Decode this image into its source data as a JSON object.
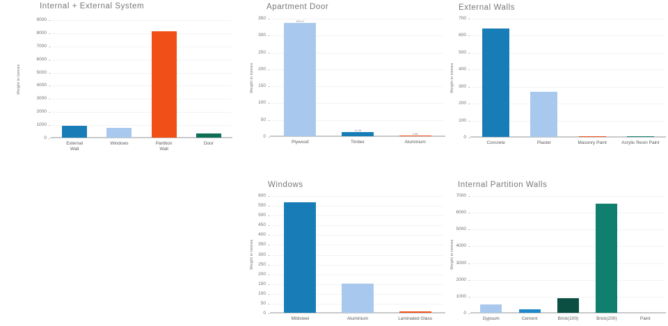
{
  "page": {
    "background": "#ffffff",
    "y_axis_label": "Weight in tonnes"
  },
  "palette": {
    "blue": "#187db6",
    "light_blue": "#a8c8ee",
    "orange": "#f05017",
    "dark_green": "#0e6f56",
    "forest_green": "#0b4f42",
    "teal": "#107f6e",
    "cement_blue": "#1e88c8"
  },
  "chart_data": [
    {
      "type": "bar",
      "title": "Internal + External System",
      "ylabel": "Weight in tonnes",
      "ylim": [
        0,
        9000
      ],
      "ytick_step": 1000,
      "grid": true,
      "legend": false,
      "categories": [
        "External\nWall",
        "Windows",
        "Partition\nWall",
        "Door"
      ],
      "values": [
        900,
        730,
        8100,
        330
      ],
      "colors": [
        "#187db6",
        "#a8c8ee",
        "#f05017",
        "#0e6f56"
      ]
    },
    {
      "type": "bar",
      "title": "Apartment Door",
      "ylabel": "Weight in tonnes",
      "ylim": [
        0,
        350
      ],
      "ytick_step": 50,
      "grid": true,
      "legend": false,
      "categories": [
        "Plywood",
        "Timber",
        "Aluminium"
      ],
      "values": [
        335.47,
        11.98,
        0.88
      ],
      "value_labels": [
        "335.47",
        "11.98",
        "0.88"
      ],
      "colors": [
        "#a8c8ee",
        "#187db6",
        "#f05017"
      ]
    },
    {
      "type": "bar",
      "title": "External Walls",
      "ylabel": "Weight in tonnes",
      "ylim": [
        0,
        700
      ],
      "ytick_step": 100,
      "grid": true,
      "legend": false,
      "categories": [
        "Concrete",
        "Plaster",
        "Masonry Paint",
        "Acrylic Resin Paint"
      ],
      "values": [
        640,
        265,
        6,
        2
      ],
      "colors": [
        "#187db6",
        "#a8c8ee",
        "#f05017",
        "#107f6e"
      ]
    },
    {
      "type": "bar",
      "title": "Windows",
      "ylabel": "Weight in tonnes",
      "ylim": [
        0,
        600
      ],
      "ytick_step": 50,
      "grid": true,
      "legend": false,
      "categories": [
        "Mildsteel",
        "Aluminium",
        "Laminated Glass"
      ],
      "values": [
        565,
        150,
        8
      ],
      "colors": [
        "#187db6",
        "#a8c8ee",
        "#f05017"
      ]
    },
    {
      "type": "bar",
      "title": "Internal Partition Walls",
      "ylabel": "Weight in tonnes",
      "ylim": [
        0,
        7000
      ],
      "ytick_step": 1000,
      "grid": true,
      "legend": false,
      "categories": [
        "Gypsum",
        "Cement",
        "Brick(100)",
        "Brick(200)",
        "Paint"
      ],
      "values": [
        480,
        200,
        850,
        6500,
        0
      ],
      "colors": [
        "#a8c8ee",
        "#1e88c8",
        "#0b4f42",
        "#107f6e",
        "#187db6"
      ]
    }
  ]
}
